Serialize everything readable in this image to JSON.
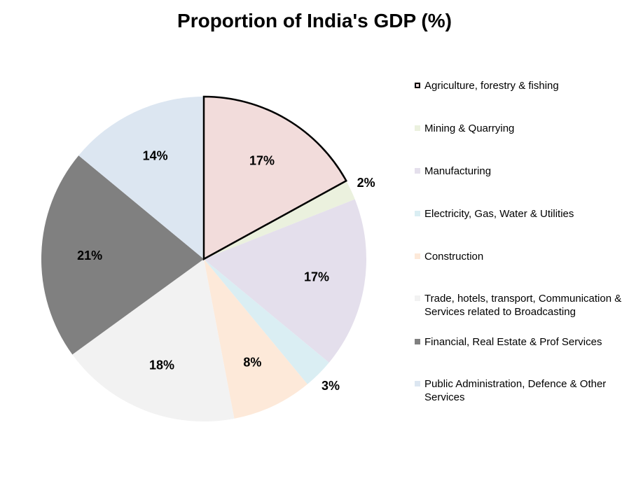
{
  "chart_data": {
    "type": "pie",
    "title": "Proportion of India's GDP (%)",
    "legend_position": "right",
    "slices": [
      {
        "label": "Agriculture, forestry & fishing",
        "value": 17,
        "value_label": "17%",
        "color": "#F2DCDB",
        "highlighted": true
      },
      {
        "label": "Mining & Quarrying",
        "value": 2,
        "value_label": "2%",
        "color": "#EBF1DE",
        "highlighted": false
      },
      {
        "label": "Manufacturing",
        "value": 17,
        "value_label": "17%",
        "color": "#E4DFEC",
        "highlighted": false
      },
      {
        "label": "Electricity, Gas, Water & Utilities",
        "value": 3,
        "value_label": "3%",
        "color": "#DAEEF3",
        "highlighted": false
      },
      {
        "label": "Construction",
        "value": 8,
        "value_label": "8%",
        "color": "#FDE9D9",
        "highlighted": false
      },
      {
        "label": "Trade, hotels, transport, Communication & Services related to Broadcasting",
        "value": 18,
        "value_label": "18%",
        "color": "#F2F2F2",
        "highlighted": false
      },
      {
        "label": "Financial, Real Estate & Prof Services",
        "value": 21,
        "value_label": "21%",
        "color": "#808080",
        "highlighted": false
      },
      {
        "label": "Public Administration, Defence & Other Services",
        "value": 14,
        "value_label": "14%",
        "color": "#DCE6F1",
        "highlighted": false
      }
    ]
  }
}
